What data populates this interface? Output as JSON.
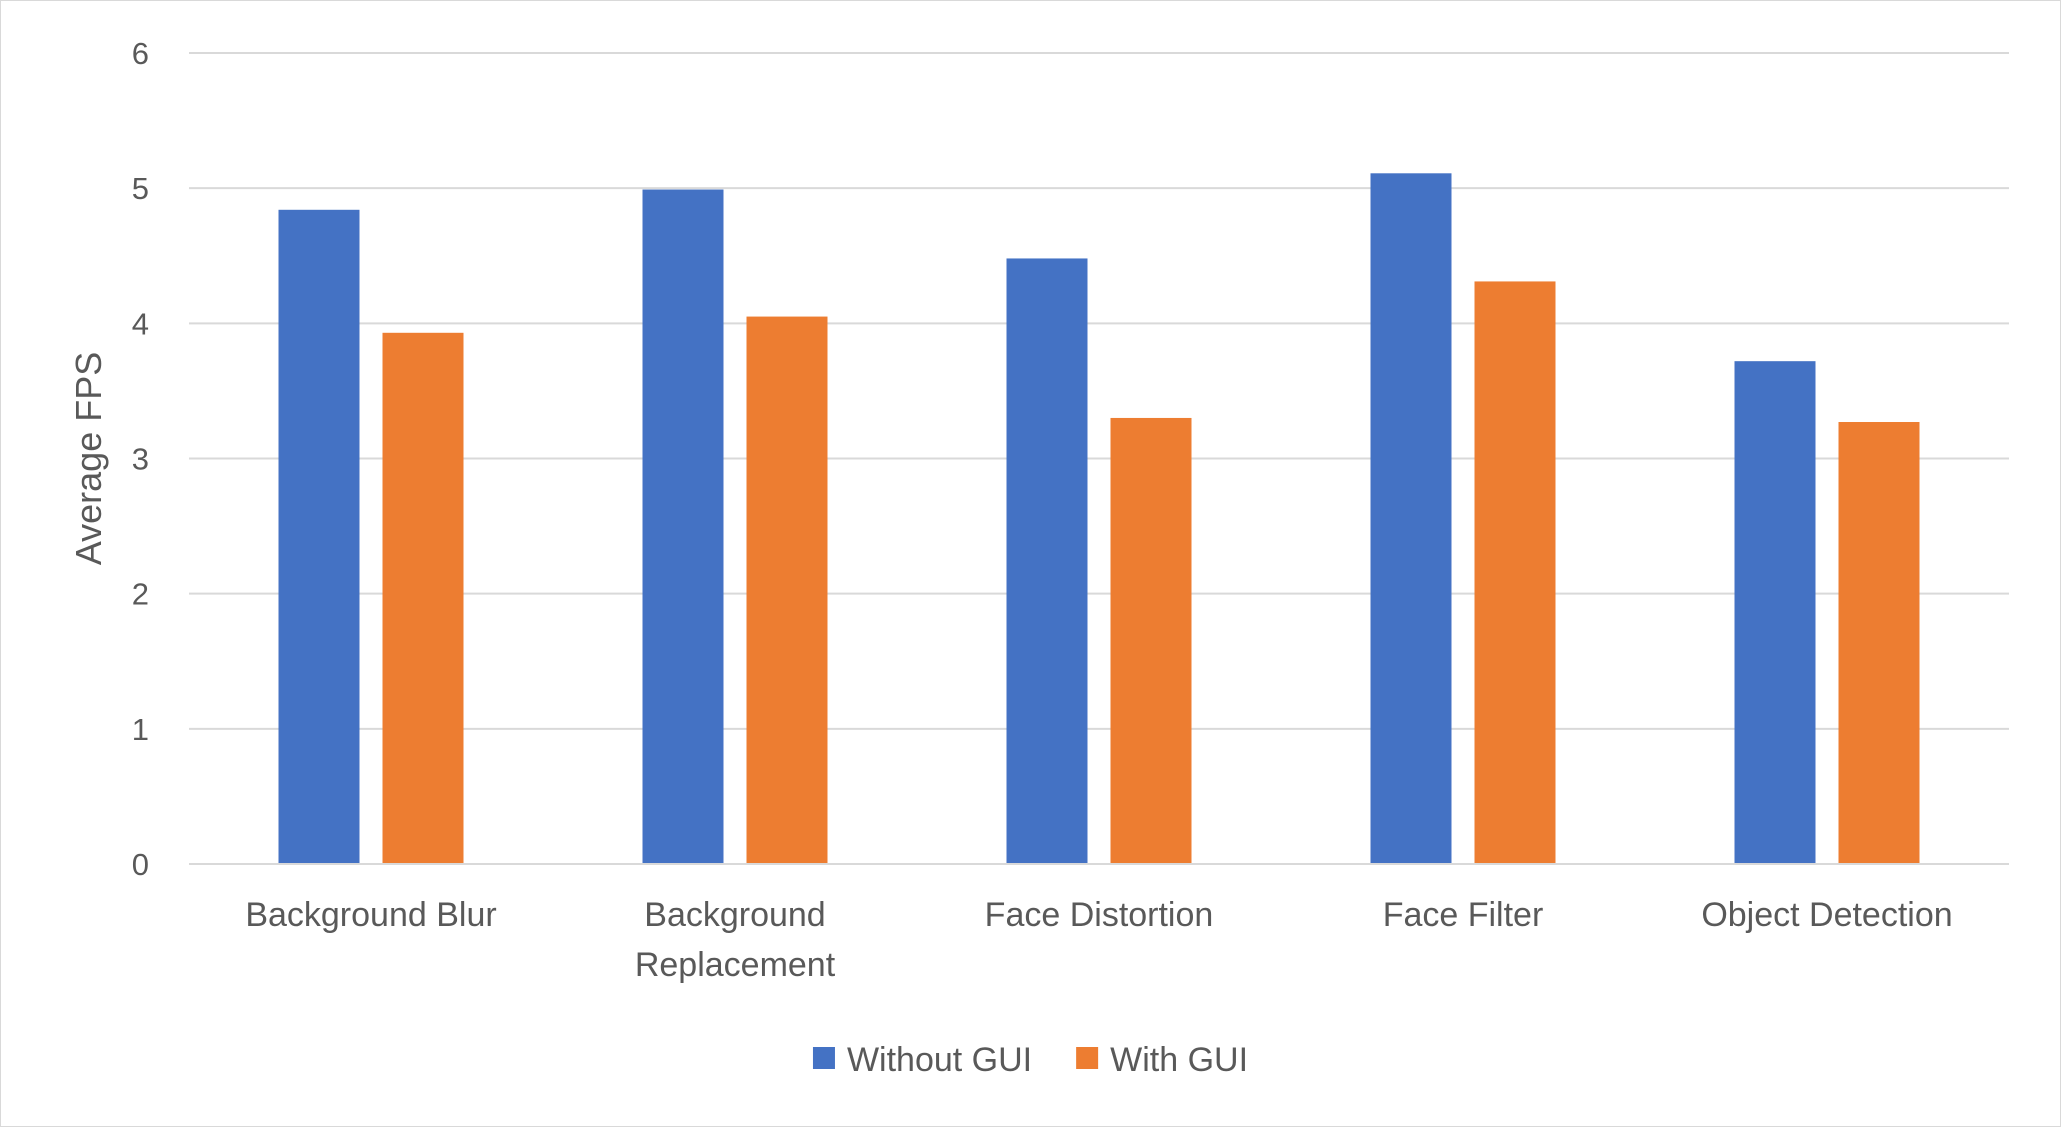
{
  "chart_data": {
    "type": "bar",
    "title": "",
    "xlabel": "",
    "ylabel": "Average FPS",
    "ylim": [
      0,
      6
    ],
    "yticks": [
      0,
      1,
      2,
      3,
      4,
      5,
      6
    ],
    "grid": true,
    "legend_position": "bottom",
    "categories": [
      [
        "Background Blur"
      ],
      [
        "Background",
        "Replacement"
      ],
      [
        "Face Distortion"
      ],
      [
        "Face Filter"
      ],
      [
        "Object Detection"
      ]
    ],
    "series": [
      {
        "name": "Without GUI",
        "color": "#4472C4",
        "values": [
          4.84,
          4.99,
          4.48,
          5.11,
          3.72
        ]
      },
      {
        "name": "With GUI",
        "color": "#ED7D31",
        "values": [
          3.93,
          4.05,
          3.3,
          4.31,
          3.27
        ]
      }
    ]
  }
}
